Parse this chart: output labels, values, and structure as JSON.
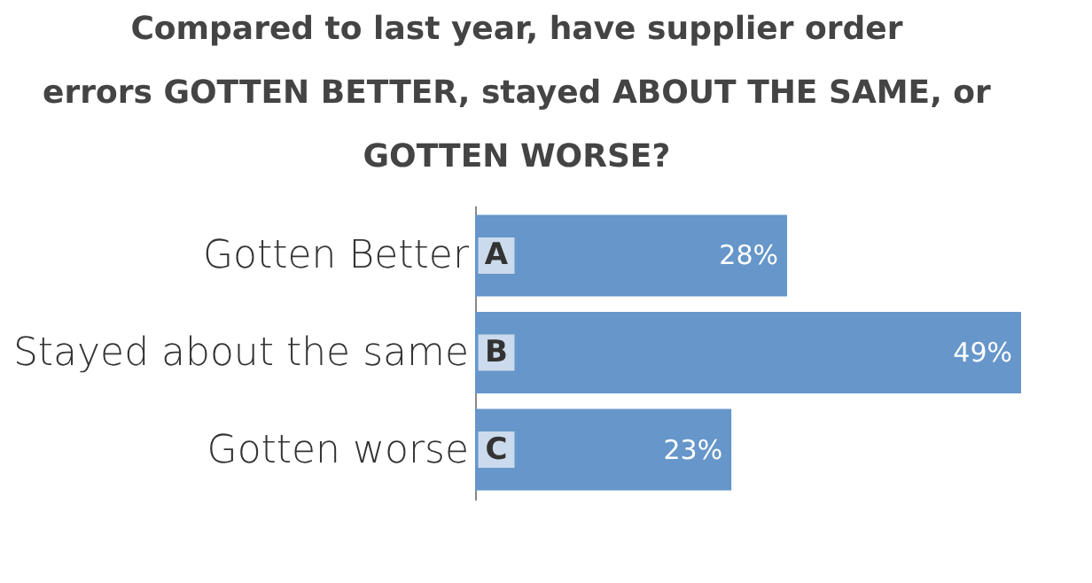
{
  "chart_data": {
    "type": "bar",
    "orientation": "horizontal",
    "title": "Compared to last year, have supplier order errors GOTTEN BETTER, stayed ABOUT THE SAME, or GOTTEN WORSE?",
    "categories": [
      "Gotten Better",
      "Stayed about the same",
      "Gotten worse"
    ],
    "values": [
      28,
      49,
      23
    ],
    "value_labels": [
      "28%",
      "49%",
      "23%"
    ],
    "color": "#6696ca",
    "annotations": [
      {
        "text": "A",
        "y": "Gotten Better"
      },
      {
        "text": "B",
        "y": "Stayed about the same"
      },
      {
        "text": "C",
        "y": "Gotten worse"
      }
    ]
  }
}
